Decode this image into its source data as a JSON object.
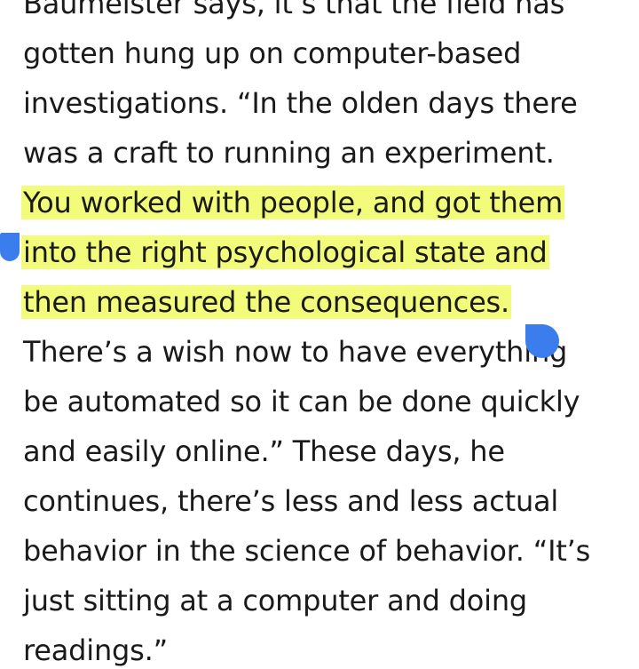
{
  "article": {
    "lines": [
      "Baumeister says, it’s that the field has",
      "gotten hung up on computer-based",
      "investigations. “In the olden days there",
      "was a craft to running an experiment.",
      "You worked with people, and got them",
      "into the right psychological state and",
      "then measured the consequences.",
      "There’s a wish now to have everything",
      "be automated so it can be done quickly",
      "and easily online.” These days, he",
      "continues, there’s less and less actual",
      "behavior in the science of behavior. “It’s",
      "just sitting at a computer and doing",
      "readings.”"
    ]
  },
  "selection": {
    "highlight_color": "#f3fb7a",
    "handle_color": "#3b7ded"
  }
}
